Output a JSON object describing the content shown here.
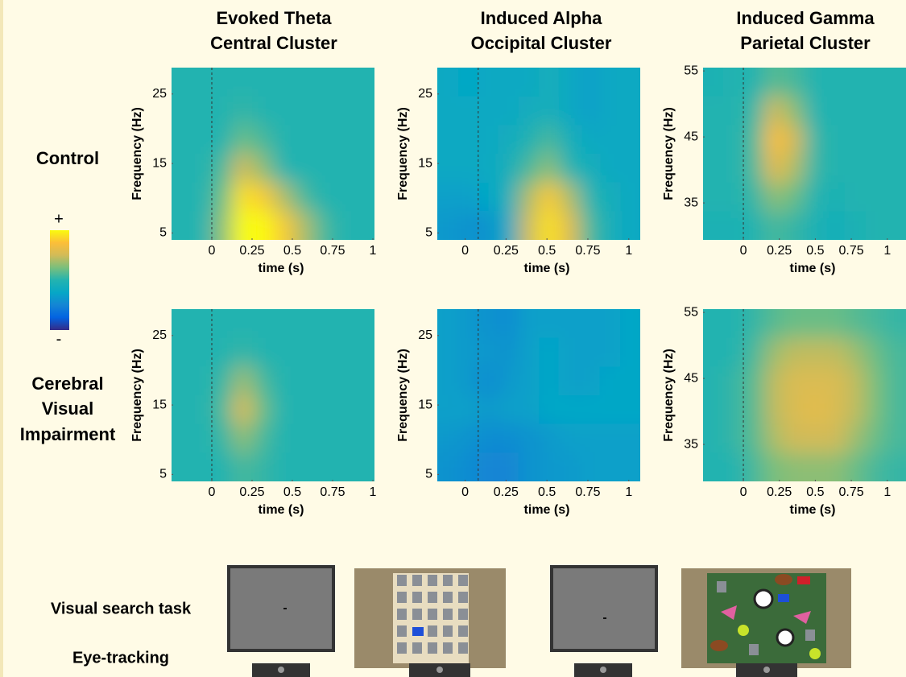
{
  "columns": [
    {
      "title_lines": [
        "Evoked Theta",
        "Central Cluster"
      ]
    },
    {
      "title_lines": [
        "Induced Alpha",
        "Occipital Cluster"
      ]
    },
    {
      "title_lines": [
        "Induced Gamma",
        "Parietal Cluster"
      ]
    }
  ],
  "rows": [
    {
      "label_lines": [
        "Control"
      ]
    },
    {
      "label_lines": [
        "Cerebral",
        "Visual",
        "Impairment"
      ]
    }
  ],
  "colorbar": {
    "max_label": "+",
    "min_label": "-",
    "colormap": [
      "#352a87",
      "#0363e1",
      "#1485d4",
      "#06a7c6",
      "#23b3b0",
      "#7abf7c",
      "#d2bb58",
      "#fcbe39",
      "#f9fb0e"
    ]
  },
  "task": {
    "labels": [
      "Visual search task",
      "Eye-tracking"
    ]
  },
  "chart_data": [
    {
      "type": "heatmap",
      "xlabel": "time (s)",
      "ylabel": "Frequency (Hz)",
      "xlim": [
        -0.25,
        1.01
      ],
      "ylim": [
        4,
        28.8
      ],
      "xticks": [
        0,
        0.25,
        0.5,
        0.75,
        1
      ],
      "yticks": [
        5,
        15,
        25
      ],
      "marker_x": 0,
      "zlim": [
        -1,
        1
      ],
      "z": [
        [
          0,
          0,
          0,
          0,
          0,
          0,
          0,
          0,
          0,
          0
        ],
        [
          0,
          0,
          0,
          0.05,
          0,
          0,
          0,
          0,
          0,
          0
        ],
        [
          0,
          0,
          0,
          0.2,
          0.1,
          0,
          0,
          0,
          0,
          0
        ],
        [
          0,
          0,
          0.1,
          0.5,
          0.3,
          0,
          0,
          0,
          0,
          0
        ],
        [
          0,
          0,
          0.2,
          0.9,
          0.8,
          0.4,
          0.1,
          0,
          0,
          0
        ],
        [
          0,
          0,
          0.3,
          1,
          1,
          0.8,
          0.4,
          0.1,
          0,
          0
        ]
      ]
    },
    {
      "type": "heatmap",
      "xlabel": "time (s)",
      "ylabel": "Frequency (Hz)",
      "xlim": [
        -0.17,
        1.07
      ],
      "ylim": [
        4,
        28.8
      ],
      "xticks": [
        0,
        0.25,
        0.5,
        0.75,
        1
      ],
      "yticks": [
        5,
        15,
        25
      ],
      "marker_x": 0.08,
      "zlim": [
        -1,
        1
      ],
      "z": [
        [
          -0.2,
          -0.25,
          -0.2,
          -0.2,
          -0.2,
          -0.1,
          -0.2,
          -0.3,
          -0.2,
          -0.2
        ],
        [
          -0.2,
          -0.2,
          -0.2,
          -0.2,
          -0.15,
          -0.1,
          -0.2,
          -0.3,
          -0.2,
          -0.2
        ],
        [
          -0.2,
          -0.2,
          -0.2,
          -0.15,
          -0.05,
          0.1,
          -0.1,
          -0.2,
          -0.2,
          -0.2
        ],
        [
          -0.2,
          -0.2,
          -0.2,
          -0.1,
          0.1,
          0.3,
          0,
          -0.1,
          -0.2,
          -0.2
        ],
        [
          -0.3,
          -0.3,
          -0.25,
          -0.1,
          0.4,
          0.8,
          0.4,
          0,
          -0.1,
          -0.2
        ],
        [
          -0.35,
          -0.4,
          -0.4,
          -0.2,
          0.5,
          0.9,
          0.6,
          0.1,
          -0.1,
          -0.2
        ]
      ]
    },
    {
      "type": "heatmap",
      "xlabel": "time (s)",
      "ylabel": "Frequency (Hz)",
      "xlim": [
        -0.28,
        1.13
      ],
      "ylim": [
        29.4,
        55.5
      ],
      "xticks": [
        0,
        0.25,
        0.5,
        0.75,
        1
      ],
      "yticks": [
        35,
        45,
        55
      ],
      "marker_x": 0,
      "zlim": [
        -1,
        1
      ],
      "z": [
        [
          -0.05,
          0,
          0,
          0.15,
          0.1,
          0,
          0,
          0,
          0,
          0
        ],
        [
          0,
          0,
          0.05,
          0.5,
          0.3,
          0,
          0,
          0,
          0,
          0
        ],
        [
          0,
          0,
          0.1,
          0.75,
          0.5,
          0.05,
          0,
          0,
          0,
          0
        ],
        [
          0,
          0,
          0.1,
          0.6,
          0.4,
          0.05,
          0,
          0,
          0,
          0
        ],
        [
          0,
          0,
          0.05,
          0.3,
          0.2,
          0,
          -0.05,
          0,
          0,
          0
        ],
        [
          -0.05,
          -0.05,
          0,
          0.1,
          0.05,
          -0.05,
          -0.1,
          -0.05,
          0,
          0
        ]
      ]
    },
    {
      "type": "heatmap",
      "xlabel": "time (s)",
      "ylabel": "Frequency (Hz)",
      "xlim": [
        -0.25,
        1.01
      ],
      "ylim": [
        4,
        28.8
      ],
      "xticks": [
        0,
        0.25,
        0.5,
        0.75,
        1
      ],
      "yticks": [
        5,
        15,
        25
      ],
      "marker_x": 0,
      "zlim": [
        -1,
        1
      ],
      "z": [
        [
          0,
          0,
          0,
          0,
          0,
          0,
          0,
          0,
          0,
          0
        ],
        [
          0,
          0,
          0,
          0.05,
          0,
          0,
          0,
          0,
          0,
          0
        ],
        [
          0,
          0,
          0.05,
          0.35,
          0.1,
          0,
          0,
          0,
          0,
          0
        ],
        [
          0,
          0,
          0.1,
          0.55,
          0.2,
          0,
          0,
          0,
          0,
          0
        ],
        [
          0,
          0,
          0.05,
          0.3,
          0.1,
          0,
          0,
          0,
          0,
          0
        ],
        [
          0,
          0,
          0,
          0.1,
          0.05,
          0,
          0,
          0,
          0,
          0
        ]
      ]
    },
    {
      "type": "heatmap",
      "xlabel": "time (s)",
      "ylabel": "Frequency (Hz)",
      "xlim": [
        -0.17,
        1.07
      ],
      "ylim": [
        4,
        28.8
      ],
      "xticks": [
        0,
        0.25,
        0.5,
        0.75,
        1
      ],
      "yticks": [
        5,
        15,
        25
      ],
      "marker_x": 0.08,
      "zlim": [
        -1,
        1
      ],
      "z": [
        [
          -0.3,
          -0.35,
          -0.4,
          -0.45,
          -0.3,
          -0.3,
          -0.3,
          -0.3,
          -0.3,
          -0.25
        ],
        [
          -0.3,
          -0.35,
          -0.35,
          -0.4,
          -0.3,
          -0.25,
          -0.3,
          -0.3,
          -0.3,
          -0.25
        ],
        [
          -0.3,
          -0.35,
          -0.45,
          -0.35,
          -0.3,
          -0.25,
          -0.3,
          -0.3,
          -0.25,
          -0.25
        ],
        [
          -0.3,
          -0.3,
          -0.35,
          -0.3,
          -0.3,
          -0.25,
          -0.25,
          -0.25,
          -0.25,
          -0.25
        ],
        [
          -0.35,
          -0.4,
          -0.45,
          -0.45,
          -0.4,
          -0.35,
          -0.3,
          -0.3,
          -0.3,
          -0.3
        ],
        [
          -0.4,
          -0.45,
          -0.5,
          -0.5,
          -0.4,
          -0.35,
          -0.35,
          -0.3,
          -0.3,
          -0.3
        ]
      ]
    },
    {
      "type": "heatmap",
      "xlabel": "time (s)",
      "ylabel": "Frequency (Hz)",
      "xlim": [
        -0.28,
        1.13
      ],
      "ylim": [
        29.4,
        55.5
      ],
      "xticks": [
        0,
        0.25,
        0.5,
        0.75,
        1
      ],
      "yticks": [
        35,
        45,
        55
      ],
      "marker_x": 0,
      "zlim": [
        -1,
        1
      ],
      "z": [
        [
          0,
          0,
          0.05,
          0.15,
          0.2,
          0.2,
          0.2,
          0.15,
          0.1,
          0.05
        ],
        [
          0,
          0,
          0.1,
          0.35,
          0.45,
          0.45,
          0.45,
          0.35,
          0.2,
          0.1
        ],
        [
          0,
          0.05,
          0.15,
          0.45,
          0.55,
          0.55,
          0.55,
          0.45,
          0.25,
          0.1
        ],
        [
          0,
          0.05,
          0.15,
          0.45,
          0.55,
          0.6,
          0.55,
          0.45,
          0.25,
          0.1
        ],
        [
          0,
          0.05,
          0.15,
          0.4,
          0.5,
          0.5,
          0.5,
          0.35,
          0.2,
          0.1
        ],
        [
          0,
          0,
          0.1,
          0.25,
          0.3,
          0.3,
          0.3,
          0.2,
          0.1,
          0.05
        ]
      ]
    }
  ]
}
